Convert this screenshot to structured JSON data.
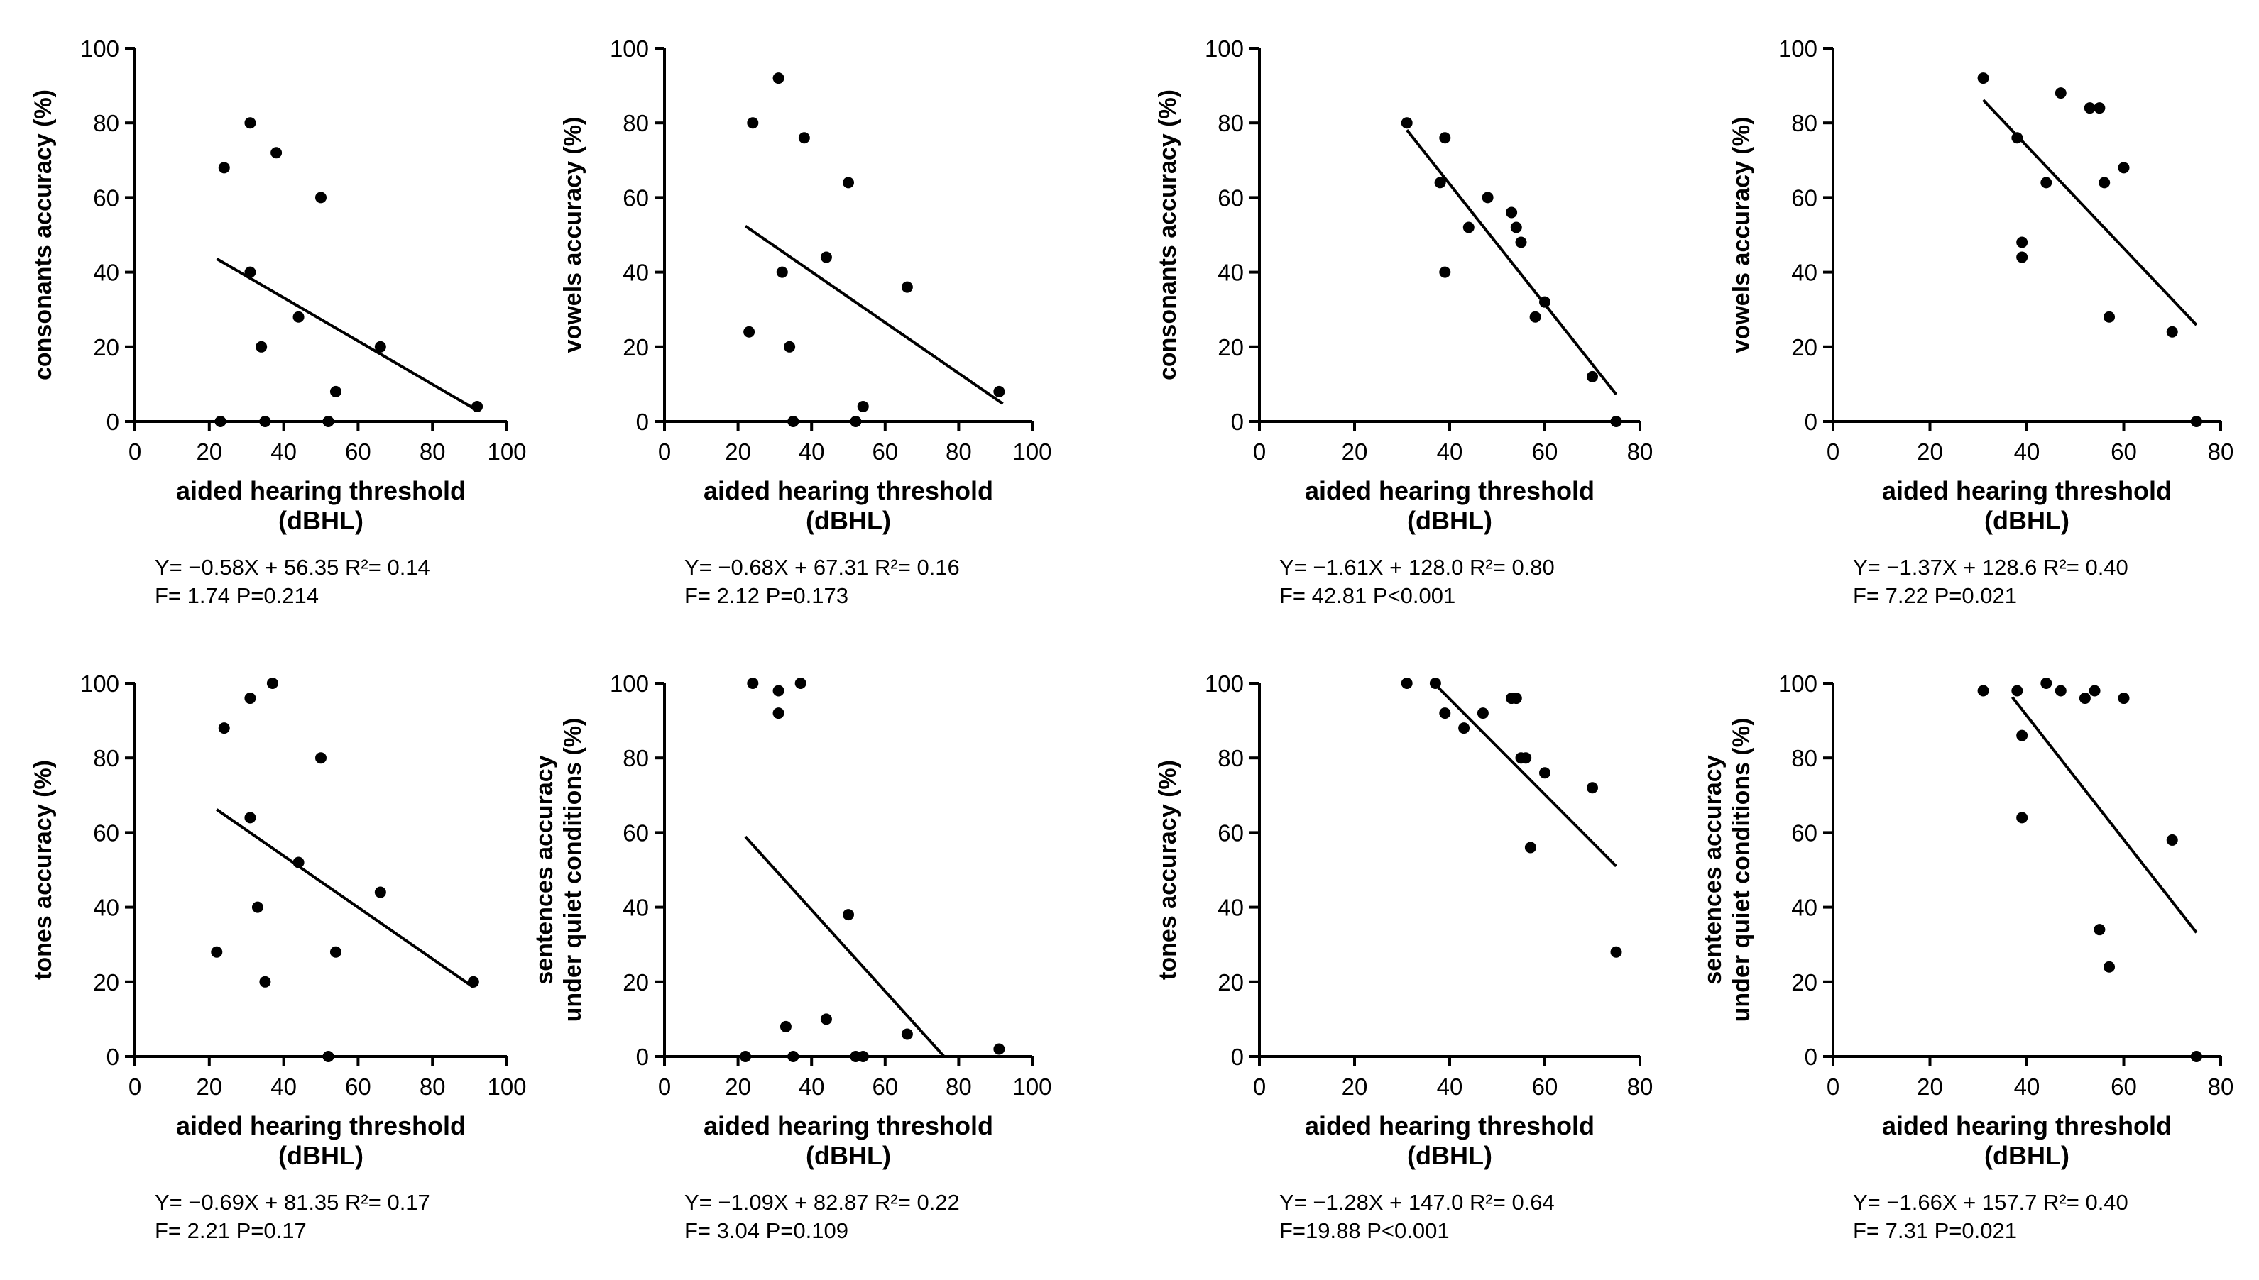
{
  "chart_data": [
    {
      "type": "scatter",
      "ylabel": [
        "consonants accuracy (%)"
      ],
      "xlabel": [
        "aided hearing threshold",
        "(dBHL)"
      ],
      "xlim": [
        0,
        100
      ],
      "ylim": [
        0,
        100
      ],
      "xticks": [
        0,
        20,
        40,
        60,
        80,
        100
      ],
      "yticks": [
        0,
        20,
        40,
        60,
        80,
        100
      ],
      "points": [
        [
          23,
          0
        ],
        [
          24,
          68
        ],
        [
          31,
          80
        ],
        [
          31,
          40
        ],
        [
          34,
          20
        ],
        [
          35,
          0
        ],
        [
          38,
          72
        ],
        [
          44,
          28
        ],
        [
          50,
          60
        ],
        [
          52,
          0
        ],
        [
          54,
          8
        ],
        [
          66,
          20
        ],
        [
          92,
          4
        ]
      ],
      "fit": {
        "slope": -0.58,
        "intercept": 56.35,
        "x_range": [
          22,
          92
        ]
      },
      "stats": [
        "Y= −0.58X + 56.35   R²= 0.14",
        "F= 1.74   P=0.214"
      ]
    },
    {
      "type": "scatter",
      "ylabel": [
        "vowels accuracy (%)"
      ],
      "xlabel": [
        "aided hearing threshold",
        "(dBHL)"
      ],
      "xlim": [
        0,
        100
      ],
      "ylim": [
        0,
        100
      ],
      "xticks": [
        0,
        20,
        40,
        60,
        80,
        100
      ],
      "yticks": [
        0,
        20,
        40,
        60,
        80,
        100
      ],
      "points": [
        [
          23,
          24
        ],
        [
          24,
          80
        ],
        [
          31,
          92
        ],
        [
          32,
          40
        ],
        [
          34,
          20
        ],
        [
          35,
          0
        ],
        [
          38,
          76
        ],
        [
          44,
          44
        ],
        [
          50,
          64
        ],
        [
          52,
          0
        ],
        [
          54,
          4
        ],
        [
          66,
          36
        ],
        [
          91,
          8
        ]
      ],
      "fit": {
        "slope": -0.68,
        "intercept": 67.31,
        "x_range": [
          22,
          92
        ]
      },
      "stats": [
        "Y= −0.68X + 67.31   R²= 0.16",
        "F= 2.12  P=0.173"
      ]
    },
    {
      "type": "scatter",
      "ylabel": [
        "consonants accuracy (%)"
      ],
      "xlabel": [
        "aided hearing threshold",
        "(dBHL)"
      ],
      "xlim": [
        0,
        80
      ],
      "ylim": [
        0,
        100
      ],
      "xticks": [
        0,
        20,
        40,
        60,
        80
      ],
      "yticks": [
        0,
        20,
        40,
        60,
        80,
        100
      ],
      "points": [
        [
          31,
          80
        ],
        [
          38,
          64
        ],
        [
          39,
          40
        ],
        [
          39,
          76
        ],
        [
          44,
          52
        ],
        [
          48,
          60
        ],
        [
          53,
          56
        ],
        [
          54,
          52
        ],
        [
          55,
          48
        ],
        [
          58,
          28
        ],
        [
          60,
          32
        ],
        [
          70,
          12
        ],
        [
          75,
          0
        ]
      ],
      "fit": {
        "slope": -1.61,
        "intercept": 128.0,
        "x_range": [
          31,
          75
        ]
      },
      "stats": [
        "Y= −1.61X + 128.0   R²= 0.80",
        "F= 42.81   P<0.001"
      ]
    },
    {
      "type": "scatter",
      "ylabel": [
        "vowels accuracy (%)"
      ],
      "xlabel": [
        "aided hearing threshold",
        "(dBHL)"
      ],
      "xlim": [
        0,
        80
      ],
      "ylim": [
        0,
        100
      ],
      "xticks": [
        0,
        20,
        40,
        60,
        80
      ],
      "yticks": [
        0,
        20,
        40,
        60,
        80,
        100
      ],
      "points": [
        [
          31,
          92
        ],
        [
          38,
          76
        ],
        [
          39,
          48
        ],
        [
          39,
          44
        ],
        [
          44,
          64
        ],
        [
          47,
          88
        ],
        [
          53,
          84
        ],
        [
          55,
          84
        ],
        [
          56,
          64
        ],
        [
          57,
          28
        ],
        [
          60,
          68
        ],
        [
          70,
          24
        ],
        [
          75,
          0
        ]
      ],
      "fit": {
        "slope": -1.37,
        "intercept": 128.6,
        "x_range": [
          31,
          75
        ]
      },
      "stats": [
        "Y= −1.37X + 128.6   R²= 0.40",
        "F= 7.22  P=0.021"
      ]
    },
    {
      "type": "scatter",
      "ylabel": [
        "tones accuracy (%)"
      ],
      "xlabel": [
        "aided hearing threshold",
        "(dBHL)"
      ],
      "xlim": [
        0,
        100
      ],
      "ylim": [
        0,
        100
      ],
      "xticks": [
        0,
        20,
        40,
        60,
        80,
        100
      ],
      "yticks": [
        0,
        20,
        40,
        60,
        80,
        100
      ],
      "points": [
        [
          22,
          28
        ],
        [
          24,
          88
        ],
        [
          31,
          96
        ],
        [
          31,
          64
        ],
        [
          33,
          40
        ],
        [
          35,
          20
        ],
        [
          37,
          100
        ],
        [
          44,
          52
        ],
        [
          50,
          80
        ],
        [
          52,
          0
        ],
        [
          54,
          28
        ],
        [
          66,
          44
        ],
        [
          91,
          20
        ]
      ],
      "fit": {
        "slope": -0.69,
        "intercept": 81.35,
        "x_range": [
          22,
          91
        ]
      },
      "stats": [
        "Y= −0.69X + 81.35   R²= 0.17",
        "F= 2.21   P=0.17"
      ]
    },
    {
      "type": "scatter",
      "ylabel": [
        "sentences accuracy",
        "under quiet conditions (%)"
      ],
      "xlabel": [
        "aided hearing threshold",
        "(dBHL)"
      ],
      "xlim": [
        0,
        100
      ],
      "ylim": [
        0,
        100
      ],
      "xticks": [
        0,
        20,
        40,
        60,
        80,
        100
      ],
      "yticks": [
        0,
        20,
        40,
        60,
        80,
        100
      ],
      "points": [
        [
          22,
          0
        ],
        [
          24,
          100
        ],
        [
          31,
          98
        ],
        [
          31,
          92
        ],
        [
          33,
          8
        ],
        [
          35,
          0
        ],
        [
          37,
          100
        ],
        [
          44,
          10
        ],
        [
          50,
          38
        ],
        [
          52,
          0
        ],
        [
          54,
          0
        ],
        [
          66,
          6
        ],
        [
          91,
          2
        ]
      ],
      "fit": {
        "slope": -1.09,
        "intercept": 82.87,
        "x_range": [
          22,
          76
        ]
      },
      "stats": [
        "Y= −1.09X + 82.87   R²= 0.22",
        "F= 3.04   P=0.109"
      ]
    },
    {
      "type": "scatter",
      "ylabel": [
        "tones accuracy (%)"
      ],
      "xlabel": [
        "aided hearing threshold",
        "(dBHL)"
      ],
      "xlim": [
        0,
        80
      ],
      "ylim": [
        0,
        100
      ],
      "xticks": [
        0,
        20,
        40,
        60,
        80
      ],
      "yticks": [
        0,
        20,
        40,
        60,
        80,
        100
      ],
      "points": [
        [
          31,
          100
        ],
        [
          37,
          100
        ],
        [
          39,
          92
        ],
        [
          43,
          88
        ],
        [
          47,
          92
        ],
        [
          53,
          96
        ],
        [
          54,
          96
        ],
        [
          55,
          80
        ],
        [
          56,
          80
        ],
        [
          57,
          56
        ],
        [
          60,
          76
        ],
        [
          70,
          72
        ],
        [
          75,
          28
        ]
      ],
      "fit": {
        "slope": -1.28,
        "intercept": 147.0,
        "x_range": [
          37,
          75
        ]
      },
      "stats": [
        "Y= −1.28X + 147.0   R²= 0.64",
        "F=19.88  P<0.001"
      ]
    },
    {
      "type": "scatter",
      "ylabel": [
        "sentences accuracy",
        "under quiet conditions (%)"
      ],
      "xlabel": [
        "aided hearing threshold",
        "(dBHL)"
      ],
      "xlim": [
        0,
        80
      ],
      "ylim": [
        0,
        100
      ],
      "xticks": [
        0,
        20,
        40,
        60,
        80
      ],
      "yticks": [
        0,
        20,
        40,
        60,
        80,
        100
      ],
      "points": [
        [
          31,
          98
        ],
        [
          38,
          98
        ],
        [
          39,
          86
        ],
        [
          39,
          64
        ],
        [
          44,
          100
        ],
        [
          47,
          98
        ],
        [
          52,
          96
        ],
        [
          54,
          98
        ],
        [
          55,
          34
        ],
        [
          57,
          24
        ],
        [
          60,
          96
        ],
        [
          70,
          58
        ],
        [
          75,
          0
        ]
      ],
      "fit": {
        "slope": -1.66,
        "intercept": 157.7,
        "x_range": [
          37,
          75
        ]
      },
      "stats": [
        "Y= −1.66X + 157.7   R²= 0.40",
        "F= 7.31   P=0.021"
      ]
    }
  ]
}
